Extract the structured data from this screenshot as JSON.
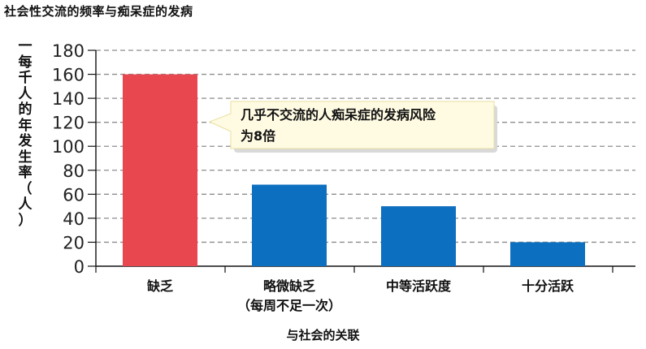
{
  "title": "社会性交流的频率与痴呆症的发病",
  "chart_data": {
    "type": "bar",
    "title": "社会性交流的频率与痴呆症的发病",
    "ylabel": "一每千人的年发生率（人）",
    "xlabel": "与社会的关联",
    "ylim": [
      0,
      180
    ],
    "yticks": [
      0,
      20,
      40,
      60,
      80,
      100,
      120,
      140,
      160,
      180
    ],
    "grid": true,
    "categories": [
      [
        "缺乏"
      ],
      [
        "略微缺乏",
        "（每周不足一次）"
      ],
      [
        "中等活跃度"
      ],
      [
        "十分活跃"
      ]
    ],
    "values": [
      160,
      68,
      50,
      20
    ],
    "colors": [
      "#e8474f",
      "#0d6fbf",
      "#0d6fbf",
      "#0d6fbf"
    ],
    "annotation": {
      "lines": [
        "几乎不交流的人痴呆症的发病风险",
        "为8倍"
      ],
      "target_category": 0
    }
  }
}
